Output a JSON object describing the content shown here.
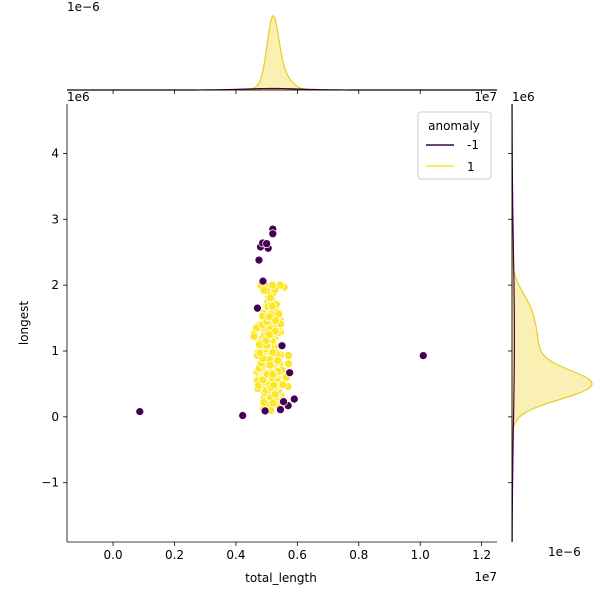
{
  "chart_data": {
    "type": "scatter",
    "xlabel": "total_length",
    "ylabel": "longest",
    "x_offset_label": "1e7",
    "y_offset_label": "1e6",
    "top_marginal_offset_label": "1e−6",
    "right_marginal_offset_label": "1e−6",
    "xlim": [
      -1500000,
      12500000
    ],
    "ylim": [
      -1900000,
      4750000
    ],
    "x_ticks": [
      {
        "value": 0,
        "label": "0.0"
      },
      {
        "value": 2000000,
        "label": "0.2"
      },
      {
        "value": 4000000,
        "label": "0.4"
      },
      {
        "value": 6000000,
        "label": "0.6"
      },
      {
        "value": 8000000,
        "label": "0.8"
      },
      {
        "value": 10000000,
        "label": "1.0"
      },
      {
        "value": 12000000,
        "label": "1.2"
      }
    ],
    "y_ticks": [
      {
        "value": -1000000,
        "label": "−1"
      },
      {
        "value": 0,
        "label": "0"
      },
      {
        "value": 1000000,
        "label": "1"
      },
      {
        "value": 2000000,
        "label": "2"
      },
      {
        "value": 3000000,
        "label": "3"
      },
      {
        "value": 4000000,
        "label": "4"
      }
    ],
    "grid": false,
    "legend": {
      "title": "anomaly",
      "placement": "top-right"
    },
    "series": [
      {
        "name": "-1",
        "color": "#440154",
        "points": [
          [
            870000,
            80000
          ],
          [
            4220000,
            20000
          ],
          [
            10100000,
            930000
          ],
          [
            5200000,
            2850000
          ],
          [
            5200000,
            2780000
          ],
          [
            5050000,
            2560000
          ],
          [
            4800000,
            2580000
          ],
          [
            4870000,
            2640000
          ],
          [
            4750000,
            2380000
          ],
          [
            4880000,
            2060000
          ],
          [
            5500000,
            1080000
          ],
          [
            5750000,
            670000
          ],
          [
            5900000,
            270000
          ],
          [
            5700000,
            170000
          ],
          [
            5450000,
            110000
          ],
          [
            4950000,
            90000
          ],
          [
            5550000,
            230000
          ],
          [
            4700000,
            1650000
          ],
          [
            5000000,
            2630000
          ]
        ]
      },
      {
        "name": "1",
        "color": "#fde725",
        "cluster": {
          "x_center": 5150000,
          "x_spread": 330000,
          "y_center": 700000,
          "y_spread": 430000,
          "y_min": 100000,
          "y_max": 2000000,
          "count": 420
        }
      }
    ],
    "marginal_top": {
      "axis": "x",
      "peak_x": 5200000,
      "series": [
        {
          "name": "1",
          "color": "#fde725",
          "edge": "#e6cf1e",
          "fill": "#fbf0b4",
          "mean": 5200000,
          "sd": 180000,
          "height": 1.0
        },
        {
          "name": "-1",
          "color": "#440154",
          "mean": 5200000,
          "sd": 900000,
          "height": 0.02
        }
      ]
    },
    "marginal_right": {
      "axis": "y",
      "series": [
        {
          "name": "1",
          "color": "#fde725",
          "edge": "#e6cf1e",
          "fill": "#fbf0b4",
          "components": [
            {
              "mean": 480000,
              "sd": 220000,
              "weight": 0.78
            },
            {
              "mean": 1100000,
              "sd": 450000,
              "weight": 0.28
            },
            {
              "mean": 1700000,
              "sd": 250000,
              "weight": 0.08
            }
          ]
        },
        {
          "name": "-1",
          "color": "#440154",
          "mean": 1200000,
          "sd": 1300000,
          "height": 0.03
        }
      ]
    }
  }
}
